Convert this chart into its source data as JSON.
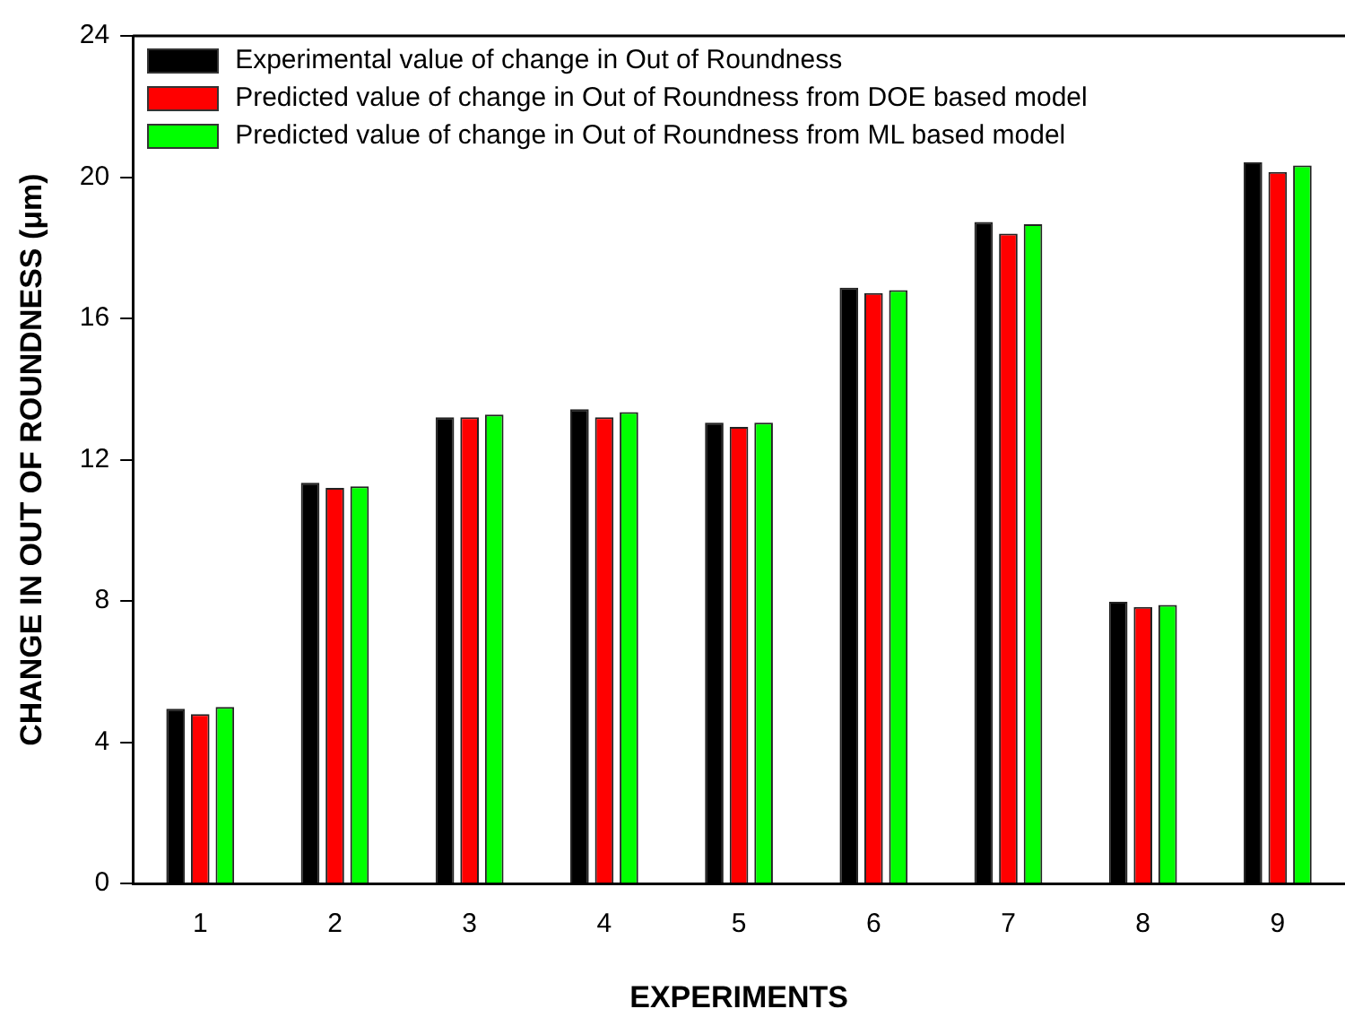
{
  "chart_data": {
    "type": "bar",
    "xlabel": "EXPERIMENTS",
    "ylabel": "CHANGE IN OUT OF ROUNDNESS (μm)",
    "categories": [
      "1",
      "2",
      "3",
      "4",
      "5",
      "6",
      "7",
      "8",
      "9"
    ],
    "series": [
      {
        "name": "Experimental value of change in Out of Roundness",
        "color": "#000000",
        "values": [
          4.95,
          11.35,
          13.2,
          13.43,
          13.05,
          16.87,
          18.73,
          7.98,
          20.42
        ]
      },
      {
        "name": "Predicted value of change in Out of Roundness from DOE based model",
        "color": "#ff0000",
        "values": [
          4.8,
          11.2,
          13.2,
          13.2,
          12.93,
          16.72,
          18.4,
          7.83,
          20.15
        ]
      },
      {
        "name": "Predicted value of change in Out of Roundness from ML based model",
        "color": "#00ff00",
        "values": [
          5.0,
          11.25,
          13.28,
          13.35,
          13.05,
          16.8,
          18.67,
          7.89,
          20.33
        ]
      }
    ],
    "ylim": [
      0,
      24
    ],
    "yticks": [
      0,
      4,
      8,
      12,
      16,
      20,
      24
    ],
    "grid": false,
    "legend": "top left"
  }
}
